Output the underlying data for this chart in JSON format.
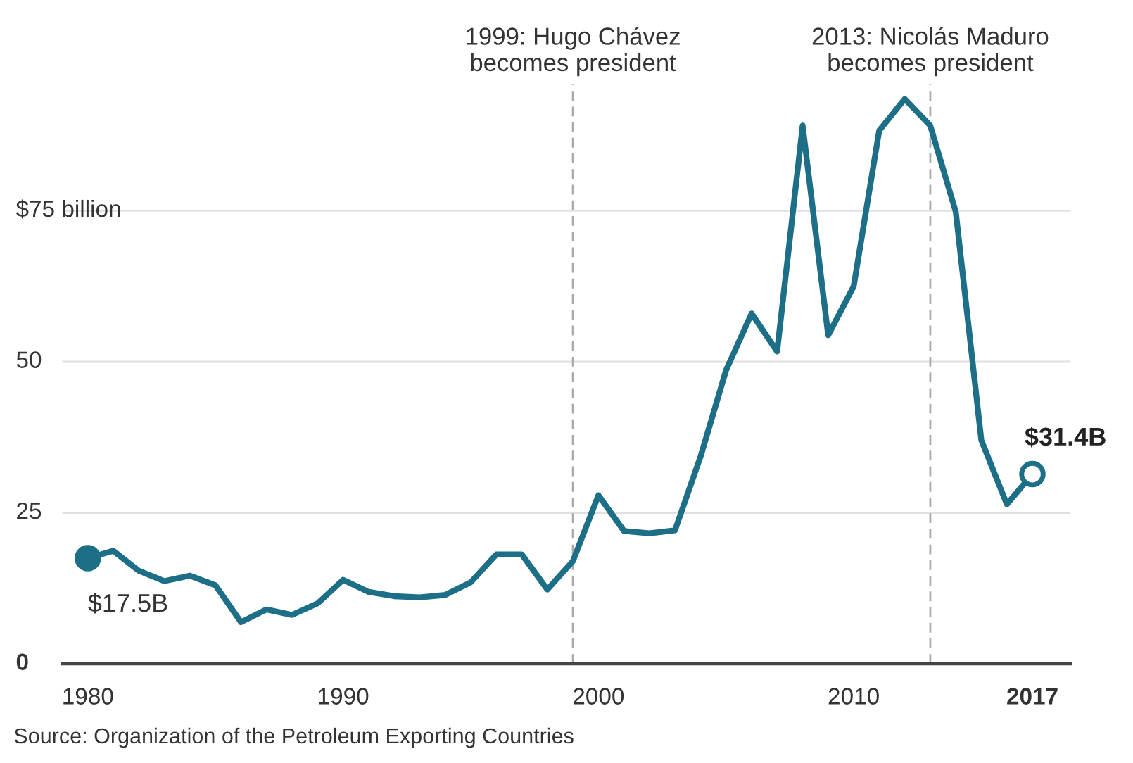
{
  "chart_data": {
    "type": "line",
    "x": [
      1980,
      1981,
      1982,
      1983,
      1984,
      1985,
      1986,
      1987,
      1988,
      1989,
      1990,
      1991,
      1992,
      1993,
      1994,
      1995,
      1996,
      1997,
      1998,
      1999,
      2000,
      2001,
      2002,
      2003,
      2004,
      2005,
      2006,
      2007,
      2008,
      2009,
      2010,
      2011,
      2012,
      2013,
      2014,
      2015,
      2016,
      2017
    ],
    "series": [
      {
        "color": "#1d6f87",
        "values": [
          17.5,
          18.7,
          15.4,
          13.7,
          14.6,
          13.0,
          6.9,
          9.0,
          8.1,
          10.0,
          13.9,
          11.9,
          11.2,
          11.0,
          11.4,
          13.5,
          18.1,
          18.1,
          12.3,
          17.0,
          27.9,
          22.0,
          21.6,
          22.1,
          34.3,
          48.6,
          58.0,
          51.7,
          89.1,
          54.4,
          62.5,
          88.3,
          93.5,
          89.1,
          74.8,
          37.0,
          26.4,
          31.4
        ]
      }
    ],
    "xlim": [
      1979,
      2018.5
    ],
    "xticks": [
      1980,
      1990,
      2000,
      2010,
      2017
    ],
    "ylim": [
      0,
      96
    ],
    "yticks": [
      0,
      25,
      50,
      {
        "value": 75,
        "label": "$75 billion"
      }
    ],
    "grid": "y",
    "marker": "none",
    "line_style": "solid",
    "ref_lines": [
      {
        "axis": "x",
        "value": 1999,
        "label": "1999: Hugo Chávez\nbecomes president"
      },
      {
        "axis": "x",
        "value": 2013,
        "label": "2013: Nicolás Maduro\nbecomes president"
      }
    ],
    "annotations": [
      {
        "text": "$17.5B",
        "x": 1980,
        "y": 17.5
      },
      {
        "text": "$31.4B",
        "x": 2017,
        "y": 31.4
      },
      "Source: Organization of the Petroleum Exporting Countries"
    ]
  }
}
